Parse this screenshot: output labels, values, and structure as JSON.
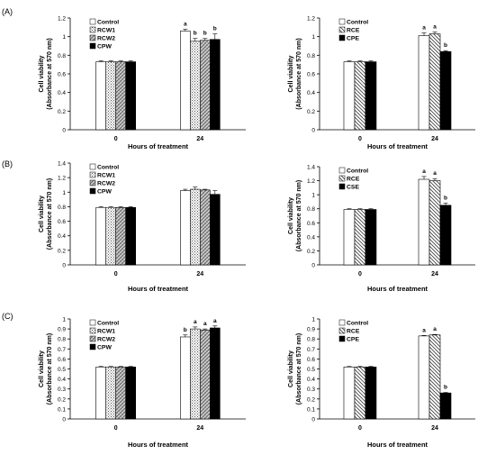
{
  "panels": [
    {
      "label": "(A)"
    },
    {
      "label": "(B)"
    },
    {
      "label": "(C)"
    }
  ],
  "chart_data": [
    {
      "type": "bar",
      "panel": "(A)",
      "categories": [
        "0",
        "24"
      ],
      "xlabel": "Hours of treatment",
      "ylabel_lines": [
        "Cell viability",
        "(Absorbance at 570 nm)"
      ],
      "ylim": [
        0,
        1.2
      ],
      "yticks": [
        "0",
        "0.2",
        "0.4",
        "0.6",
        "0.8",
        "1",
        "1.2"
      ],
      "legend_position": "top-left",
      "series": [
        {
          "name": "Control",
          "pattern": "white",
          "values": [
            0.73,
            1.06
          ],
          "errors": [
            0.01,
            0.02
          ],
          "sig": [
            "",
            "a"
          ]
        },
        {
          "name": "RCW1",
          "pattern": "dots",
          "values": [
            0.73,
            0.95
          ],
          "errors": [
            0.01,
            0.03
          ],
          "sig": [
            "",
            "b"
          ]
        },
        {
          "name": "RCW2",
          "pattern": "checker",
          "values": [
            0.73,
            0.96
          ],
          "errors": [
            0.01,
            0.02
          ],
          "sig": [
            "",
            "b"
          ]
        },
        {
          "name": "CPW",
          "pattern": "black",
          "values": [
            0.73,
            0.97
          ],
          "errors": [
            0.01,
            0.06
          ],
          "sig": [
            "",
            "b"
          ]
        }
      ]
    },
    {
      "type": "bar",
      "panel": "(A)",
      "categories": [
        "0",
        "24"
      ],
      "xlabel": "Hours of treatment",
      "ylabel_lines": [
        "Cell viability",
        "(Absorbance at 570 nm)"
      ],
      "ylim": [
        0,
        1.2
      ],
      "yticks": [
        "0",
        "0.2",
        "0.4",
        "0.6",
        "0.8",
        "1",
        "1.2"
      ],
      "legend_position": "top-left",
      "series": [
        {
          "name": "Control",
          "pattern": "white",
          "values": [
            0.73,
            1.01
          ],
          "errors": [
            0.01,
            0.03
          ],
          "sig": [
            "",
            "a"
          ]
        },
        {
          "name": "RCE",
          "pattern": "diag",
          "values": [
            0.73,
            1.03
          ],
          "errors": [
            0.01,
            0.02
          ],
          "sig": [
            "",
            "a"
          ]
        },
        {
          "name": "CPE",
          "pattern": "black",
          "values": [
            0.73,
            0.84
          ],
          "errors": [
            0.01,
            0.01
          ],
          "sig": [
            "",
            "b"
          ]
        }
      ]
    },
    {
      "type": "bar",
      "panel": "(B)",
      "categories": [
        "0",
        "24"
      ],
      "xlabel": "Hours of treatment",
      "ylabel_lines": [
        "Cell viability",
        "(Absorbance at 570 nm)"
      ],
      "ylim": [
        0,
        1.4
      ],
      "yticks": [
        "0",
        "0.2",
        "0.4",
        "0.6",
        "0.8",
        "1",
        "1.2",
        "1.4"
      ],
      "legend_position": "top-left",
      "series": [
        {
          "name": "Control",
          "pattern": "white",
          "values": [
            0.79,
            1.02
          ],
          "errors": [
            0.01,
            0.02
          ],
          "sig": [
            "",
            ""
          ]
        },
        {
          "name": "RCW1",
          "pattern": "dots",
          "values": [
            0.79,
            1.04
          ],
          "errors": [
            0.01,
            0.03
          ],
          "sig": [
            "",
            ""
          ]
        },
        {
          "name": "RCW2",
          "pattern": "checker",
          "values": [
            0.79,
            1.03
          ],
          "errors": [
            0.01,
            0.01
          ],
          "sig": [
            "",
            ""
          ]
        },
        {
          "name": "CPW",
          "pattern": "black",
          "values": [
            0.79,
            0.97
          ],
          "errors": [
            0.01,
            0.05
          ],
          "sig": [
            "",
            ""
          ]
        }
      ]
    },
    {
      "type": "bar",
      "panel": "(B)",
      "categories": [
        "0",
        "24"
      ],
      "xlabel": "Hours of treatment",
      "ylabel_lines": [
        "Cell viability",
        "(Absorbance at 570 nm)"
      ],
      "ylim": [
        0,
        1.4
      ],
      "yticks": [
        "0",
        "0.2",
        "0.4",
        "0.6",
        "0.8",
        "1",
        "1.2",
        "1.4"
      ],
      "legend_position": "top-left",
      "series": [
        {
          "name": "Control",
          "pattern": "white",
          "values": [
            0.79,
            1.22
          ],
          "errors": [
            0.01,
            0.04
          ],
          "sig": [
            "",
            "a"
          ]
        },
        {
          "name": "RCE",
          "pattern": "diag",
          "values": [
            0.79,
            1.2
          ],
          "errors": [
            0.01,
            0.03
          ],
          "sig": [
            "",
            "a"
          ]
        },
        {
          "name": "CSE",
          "pattern": "black",
          "values": [
            0.79,
            0.85
          ],
          "errors": [
            0.01,
            0.03
          ],
          "sig": [
            "",
            "b"
          ]
        }
      ]
    },
    {
      "type": "bar",
      "panel": "(C)",
      "categories": [
        "0",
        "24"
      ],
      "xlabel": "Hours of treatment",
      "ylabel_lines": [
        "Cell viability",
        "(Absorbance at 570 nm)"
      ],
      "ylim": [
        0,
        1
      ],
      "yticks": [
        "0",
        "0.1",
        "0.2",
        "0.3",
        "0.4",
        "0.5",
        "0.6",
        "0.7",
        "0.8",
        "0.9",
        "1"
      ],
      "legend_position": "top-left",
      "series": [
        {
          "name": "Control",
          "pattern": "white",
          "values": [
            0.52,
            0.82
          ],
          "errors": [
            0.005,
            0.02
          ],
          "sig": [
            "",
            "b"
          ]
        },
        {
          "name": "RCW1",
          "pattern": "dots",
          "values": [
            0.52,
            0.9
          ],
          "errors": [
            0.005,
            0.02
          ],
          "sig": [
            "",
            "a"
          ]
        },
        {
          "name": "RCW2",
          "pattern": "checker",
          "values": [
            0.52,
            0.89
          ],
          "errors": [
            0.005,
            0.01
          ],
          "sig": [
            "",
            "a"
          ]
        },
        {
          "name": "CPW",
          "pattern": "black",
          "values": [
            0.52,
            0.91
          ],
          "errors": [
            0.005,
            0.02
          ],
          "sig": [
            "",
            "a"
          ]
        }
      ]
    },
    {
      "type": "bar",
      "panel": "(C)",
      "categories": [
        "0",
        "24"
      ],
      "xlabel": "Hours of treatment",
      "ylabel_lines": [
        "Cell viability",
        "(Absorbance at 570 nm)"
      ],
      "ylim": [
        0,
        1
      ],
      "yticks": [
        "0",
        "0.1",
        "0.2",
        "0.3",
        "0.4",
        "0.5",
        "0.6",
        "0.7",
        "0.8",
        "0.9",
        "1"
      ],
      "legend_position": "top-left",
      "series": [
        {
          "name": "Control",
          "pattern": "white",
          "values": [
            0.52,
            0.83
          ],
          "errors": [
            0.005,
            0.005
          ],
          "sig": [
            "",
            "a"
          ]
        },
        {
          "name": "RCE",
          "pattern": "diag",
          "values": [
            0.52,
            0.84
          ],
          "errors": [
            0.005,
            0.005
          ],
          "sig": [
            "",
            "a"
          ]
        },
        {
          "name": "CPE",
          "pattern": "black",
          "values": [
            0.52,
            0.26
          ],
          "errors": [
            0.005,
            0.005
          ],
          "sig": [
            "",
            "b"
          ]
        }
      ]
    }
  ]
}
